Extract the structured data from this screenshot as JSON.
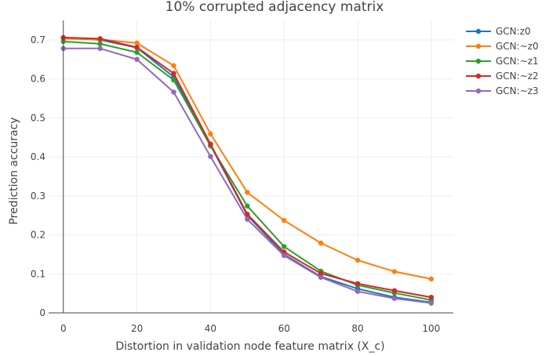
{
  "chart_data": {
    "type": "line",
    "title": "10% corrupted adjacency matrix",
    "xlabel": "Distortion in validation node feature matrix (X_c)",
    "ylabel": "Prediction accuracy",
    "x": [
      0,
      10,
      20,
      30,
      40,
      50,
      60,
      70,
      80,
      90,
      100
    ],
    "xlim": [
      -4,
      106
    ],
    "ylim": [
      0,
      0.75
    ],
    "xticks": [
      0,
      20,
      40,
      60,
      80,
      100
    ],
    "yticks": [
      0,
      0.1,
      0.2,
      0.3,
      0.4,
      0.5,
      0.6,
      0.7
    ],
    "grid": true,
    "legend_position": "top-right",
    "series": [
      {
        "name": "GCN:z0",
        "color": "#1f77b4",
        "values": [
          0.705,
          0.7,
          0.68,
          0.605,
          0.43,
          0.25,
          0.15,
          0.093,
          0.062,
          0.04,
          0.027
        ]
      },
      {
        "name": "GCN:~z0",
        "color": "#ff7f0e",
        "values": [
          0.703,
          0.701,
          0.692,
          0.634,
          0.459,
          0.309,
          0.237,
          0.179,
          0.135,
          0.106,
          0.087
        ]
      },
      {
        "name": "GCN:~z1",
        "color": "#2ca02c",
        "values": [
          0.696,
          0.69,
          0.668,
          0.597,
          0.428,
          0.274,
          0.17,
          0.107,
          0.071,
          0.051,
          0.033
        ]
      },
      {
        "name": "GCN:~z2",
        "color": "#d62728",
        "values": [
          0.706,
          0.703,
          0.681,
          0.614,
          0.433,
          0.253,
          0.156,
          0.101,
          0.075,
          0.057,
          0.04
        ]
      },
      {
        "name": "GCN:~z3",
        "color": "#9467bd",
        "values": [
          0.678,
          0.678,
          0.65,
          0.566,
          0.401,
          0.24,
          0.147,
          0.091,
          0.055,
          0.037,
          0.025
        ]
      }
    ]
  }
}
